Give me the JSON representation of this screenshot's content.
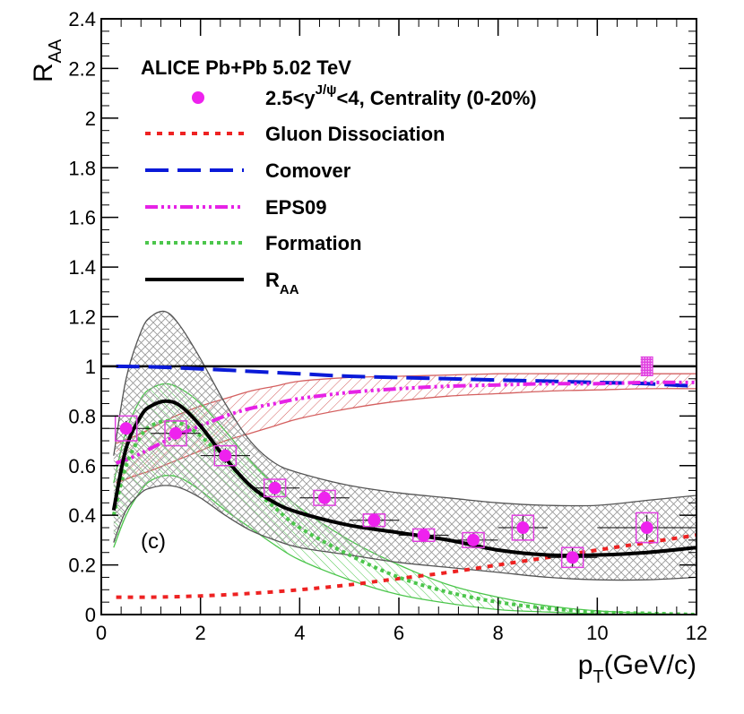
{
  "chart_data": {
    "type": "line",
    "title": "ALICE Pb+Pb 5.02 TeV",
    "panel_label": "(c)",
    "xlabel": {
      "main": "p",
      "sub": "T",
      "rest": "(GeV/c)"
    },
    "ylabel": {
      "main": "R",
      "sub": "AA"
    },
    "xlim": [
      0,
      12
    ],
    "ylim": [
      0,
      2.4
    ],
    "x_ticks": [
      "0",
      "2",
      "4",
      "6",
      "8",
      "10",
      "12"
    ],
    "y_ticks": [
      "0",
      "0.2",
      "0.4",
      "0.6",
      "0.8",
      "1",
      "1.2",
      "1.4",
      "1.6",
      "1.8",
      "2",
      "2.2",
      "2.4"
    ],
    "reference_line": 1.0,
    "global_uncertainty": {
      "x": 11.0,
      "low": 0.96,
      "high": 1.04
    },
    "legend": {
      "data": {
        "prefix": "2.5<y",
        "sup": "J/ψ",
        "suffix": "<4, Centrality (0-20%)"
      },
      "gluon": "Gluon Dissociation",
      "comover": "Comover",
      "eps": "EPS09",
      "formation": "Formation",
      "raa": {
        "main": "R",
        "sub": "AA"
      }
    },
    "data_points": [
      {
        "x": 0.5,
        "y": 0.75,
        "xerr": 0.5,
        "yerr": 0.03,
        "sys": 0.05
      },
      {
        "x": 1.5,
        "y": 0.73,
        "xerr": 0.5,
        "yerr": 0.03,
        "sys": 0.05
      },
      {
        "x": 2.5,
        "y": 0.64,
        "xerr": 0.5,
        "yerr": 0.03,
        "sys": 0.04
      },
      {
        "x": 3.5,
        "y": 0.51,
        "xerr": 0.5,
        "yerr": 0.03,
        "sys": 0.035
      },
      {
        "x": 4.5,
        "y": 0.47,
        "xerr": 0.5,
        "yerr": 0.03,
        "sys": 0.03
      },
      {
        "x": 5.5,
        "y": 0.38,
        "xerr": 0.5,
        "yerr": 0.03,
        "sys": 0.025
      },
      {
        "x": 6.5,
        "y": 0.32,
        "xerr": 0.5,
        "yerr": 0.03,
        "sys": 0.025
      },
      {
        "x": 7.5,
        "y": 0.3,
        "xerr": 0.5,
        "yerr": 0.03,
        "sys": 0.03
      },
      {
        "x": 8.5,
        "y": 0.35,
        "xerr": 0.5,
        "yerr": 0.05,
        "sys": 0.05
      },
      {
        "x": 9.5,
        "y": 0.23,
        "xerr": 0.5,
        "yerr": 0.04,
        "sys": 0.04
      },
      {
        "x": 11.0,
        "y": 0.35,
        "xerr": 1.0,
        "yerr": 0.05,
        "sys": 0.06
      }
    ],
    "series": [
      {
        "name": "Gluon Dissociation",
        "color": "#ee2222",
        "dash": "6,7",
        "width": 4,
        "x": [
          0.3,
          1,
          2,
          3,
          4,
          5,
          6,
          7,
          8,
          9,
          10,
          11,
          12
        ],
        "y": [
          0.07,
          0.07,
          0.075,
          0.085,
          0.1,
          0.12,
          0.145,
          0.17,
          0.2,
          0.23,
          0.26,
          0.29,
          0.32
        ]
      },
      {
        "name": "Comover",
        "color": "#0a1ad8",
        "dash": "26,10",
        "width": 4,
        "x": [
          0.3,
          1,
          2,
          3,
          4,
          5,
          6,
          7,
          8,
          9,
          10,
          11,
          12
        ],
        "y": [
          1.0,
          0.998,
          0.99,
          0.98,
          0.97,
          0.96,
          0.955,
          0.95,
          0.945,
          0.94,
          0.935,
          0.93,
          0.92
        ]
      },
      {
        "name": "EPS09",
        "color": "#e622e6",
        "dash": "14,4,3,4,3,4,3,4",
        "width": 4,
        "x": [
          0.3,
          0.7,
          1,
          1.5,
          2,
          2.5,
          3,
          3.5,
          4,
          5,
          6,
          7,
          8,
          9,
          10,
          11,
          12
        ],
        "y": [
          0.61,
          0.64,
          0.67,
          0.72,
          0.76,
          0.8,
          0.83,
          0.85,
          0.87,
          0.895,
          0.91,
          0.92,
          0.925,
          0.93,
          0.93,
          0.935,
          0.935
        ]
      },
      {
        "name": "Formation",
        "color": "#4cc64c",
        "dash": "4,4",
        "width": 4,
        "x": [
          0.25,
          0.5,
          0.8,
          1.0,
          1.3,
          1.6,
          2.0,
          2.5,
          3.0,
          3.5,
          4.0,
          5.0,
          6.0,
          7.0,
          8.0,
          9.0,
          10.0,
          11.0,
          12.0
        ],
        "y": [
          0.4,
          0.6,
          0.72,
          0.76,
          0.78,
          0.77,
          0.72,
          0.62,
          0.52,
          0.43,
          0.35,
          0.24,
          0.15,
          0.09,
          0.05,
          0.025,
          0.01,
          0.005,
          0.0
        ]
      },
      {
        "name": "R_AA",
        "color": "#000000",
        "dash": "",
        "width": 4,
        "x": [
          0.25,
          0.5,
          0.8,
          1.0,
          1.3,
          1.6,
          2.0,
          2.5,
          3.0,
          3.5,
          4.0,
          5.0,
          6.0,
          7.0,
          8.0,
          9.0,
          10.0,
          11.0,
          12.0
        ],
        "y": [
          0.42,
          0.67,
          0.8,
          0.84,
          0.86,
          0.84,
          0.76,
          0.63,
          0.52,
          0.45,
          0.41,
          0.36,
          0.33,
          0.3,
          0.26,
          0.24,
          0.24,
          0.25,
          0.27
        ]
      }
    ],
    "bands": [
      {
        "name": "EPS09 band",
        "color": "#d46060",
        "x": [
          0.3,
          0.7,
          1,
          1.5,
          2,
          2.5,
          3,
          3.5,
          4,
          5,
          6,
          7,
          8,
          9,
          10,
          11,
          12
        ],
        "low": [
          0.53,
          0.56,
          0.58,
          0.62,
          0.66,
          0.7,
          0.73,
          0.76,
          0.79,
          0.83,
          0.86,
          0.88,
          0.89,
          0.9,
          0.905,
          0.91,
          0.91
        ],
        "high": [
          0.69,
          0.72,
          0.75,
          0.8,
          0.84,
          0.87,
          0.9,
          0.92,
          0.94,
          0.955,
          0.96,
          0.965,
          0.97,
          0.97,
          0.97,
          0.97,
          0.97
        ]
      },
      {
        "name": "Formation band",
        "color": "#4cc64c",
        "x": [
          0.25,
          0.5,
          0.8,
          1.0,
          1.3,
          1.6,
          2.0,
          2.5,
          3.0,
          3.5,
          4.0,
          5.0,
          6.0,
          7.0,
          8.0,
          9.0,
          10.0,
          11.0,
          12.0
        ],
        "low": [
          0.27,
          0.4,
          0.5,
          0.54,
          0.56,
          0.55,
          0.5,
          0.42,
          0.35,
          0.28,
          0.22,
          0.14,
          0.08,
          0.045,
          0.02,
          0.01,
          0.003,
          0.0,
          0.0
        ],
        "high": [
          0.53,
          0.74,
          0.87,
          0.91,
          0.93,
          0.91,
          0.85,
          0.74,
          0.62,
          0.52,
          0.43,
          0.3,
          0.2,
          0.12,
          0.07,
          0.035,
          0.015,
          0.005,
          0.0
        ]
      },
      {
        "name": "R_AA band",
        "color": "#555555",
        "x": [
          0.25,
          0.5,
          0.8,
          1.0,
          1.3,
          1.6,
          2.0,
          2.5,
          3.0,
          3.5,
          4.0,
          5.0,
          6.0,
          7.0,
          8.0,
          9.0,
          10.0,
          11.0,
          12.0
        ],
        "low": [
          0.29,
          0.42,
          0.49,
          0.51,
          0.52,
          0.51,
          0.47,
          0.4,
          0.34,
          0.3,
          0.27,
          0.24,
          0.21,
          0.19,
          0.17,
          0.15,
          0.14,
          0.14,
          0.15
        ],
        "high": [
          0.64,
          0.95,
          1.14,
          1.2,
          1.22,
          1.16,
          1.03,
          0.85,
          0.7,
          0.61,
          0.57,
          0.52,
          0.49,
          0.47,
          0.45,
          0.44,
          0.44,
          0.46,
          0.48
        ]
      }
    ],
    "colors": {
      "marker": "#ee22ee",
      "box": "#e040e0",
      "axis": "#000000"
    }
  }
}
